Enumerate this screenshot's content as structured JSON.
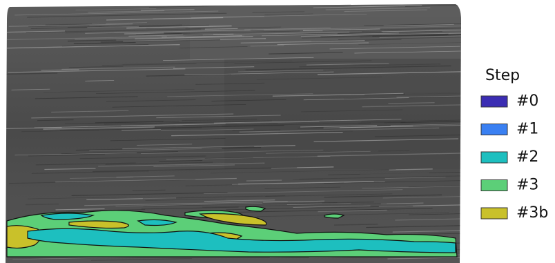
{
  "legend": {
    "title": "Step",
    "items": [
      {
        "label": "#0",
        "color": "#3b2db3"
      },
      {
        "label": "#1",
        "color": "#3a80f2"
      },
      {
        "label": "#2",
        "color": "#1dbfbf"
      },
      {
        "label": "#3",
        "color": "#5ccf78"
      },
      {
        "label": "#3b",
        "color": "#c9c12a"
      }
    ]
  }
}
